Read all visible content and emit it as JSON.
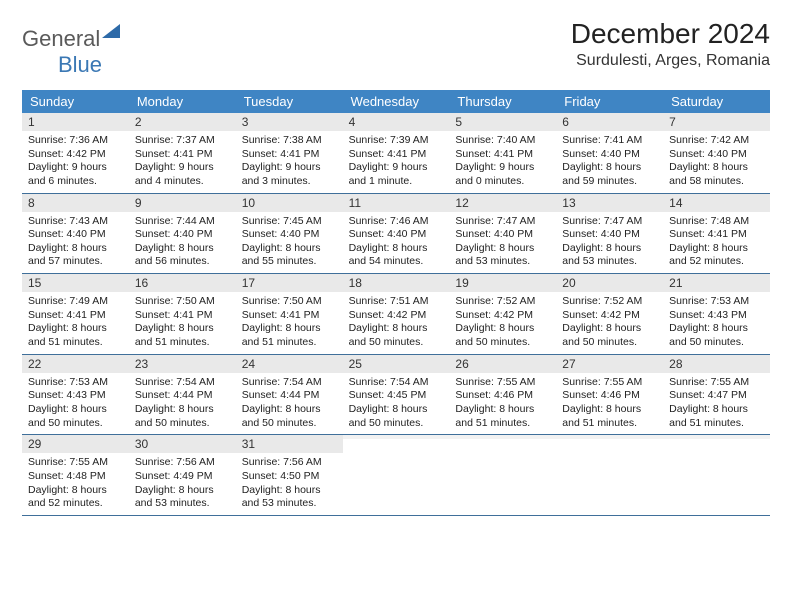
{
  "logo": {
    "general": "General",
    "blue": "Blue"
  },
  "title": "December 2024",
  "location": "Surdulesti, Arges, Romania",
  "colors": {
    "header_bg": "#3f85c4",
    "header_text": "#ffffff",
    "daynum_bg": "#e9e9e9",
    "week_border": "#3f6f9a",
    "logo_gray": "#5a5a5a",
    "logo_blue": "#3b78b4"
  },
  "typography": {
    "title_fontsize": 28,
    "location_fontsize": 16,
    "dayhead_fontsize": 13,
    "daynum_fontsize": 12,
    "daytext_fontsize": 10.5
  },
  "layout": {
    "columns": 7,
    "rows": 5
  },
  "day_headers": [
    "Sunday",
    "Monday",
    "Tuesday",
    "Wednesday",
    "Thursday",
    "Friday",
    "Saturday"
  ],
  "weeks": [
    [
      {
        "n": "1",
        "sr": "Sunrise: 7:36 AM",
        "ss": "Sunset: 4:42 PM",
        "d1": "Daylight: 9 hours",
        "d2": "and 6 minutes."
      },
      {
        "n": "2",
        "sr": "Sunrise: 7:37 AM",
        "ss": "Sunset: 4:41 PM",
        "d1": "Daylight: 9 hours",
        "d2": "and 4 minutes."
      },
      {
        "n": "3",
        "sr": "Sunrise: 7:38 AM",
        "ss": "Sunset: 4:41 PM",
        "d1": "Daylight: 9 hours",
        "d2": "and 3 minutes."
      },
      {
        "n": "4",
        "sr": "Sunrise: 7:39 AM",
        "ss": "Sunset: 4:41 PM",
        "d1": "Daylight: 9 hours",
        "d2": "and 1 minute."
      },
      {
        "n": "5",
        "sr": "Sunrise: 7:40 AM",
        "ss": "Sunset: 4:41 PM",
        "d1": "Daylight: 9 hours",
        "d2": "and 0 minutes."
      },
      {
        "n": "6",
        "sr": "Sunrise: 7:41 AM",
        "ss": "Sunset: 4:40 PM",
        "d1": "Daylight: 8 hours",
        "d2": "and 59 minutes."
      },
      {
        "n": "7",
        "sr": "Sunrise: 7:42 AM",
        "ss": "Sunset: 4:40 PM",
        "d1": "Daylight: 8 hours",
        "d2": "and 58 minutes."
      }
    ],
    [
      {
        "n": "8",
        "sr": "Sunrise: 7:43 AM",
        "ss": "Sunset: 4:40 PM",
        "d1": "Daylight: 8 hours",
        "d2": "and 57 minutes."
      },
      {
        "n": "9",
        "sr": "Sunrise: 7:44 AM",
        "ss": "Sunset: 4:40 PM",
        "d1": "Daylight: 8 hours",
        "d2": "and 56 minutes."
      },
      {
        "n": "10",
        "sr": "Sunrise: 7:45 AM",
        "ss": "Sunset: 4:40 PM",
        "d1": "Daylight: 8 hours",
        "d2": "and 55 minutes."
      },
      {
        "n": "11",
        "sr": "Sunrise: 7:46 AM",
        "ss": "Sunset: 4:40 PM",
        "d1": "Daylight: 8 hours",
        "d2": "and 54 minutes."
      },
      {
        "n": "12",
        "sr": "Sunrise: 7:47 AM",
        "ss": "Sunset: 4:40 PM",
        "d1": "Daylight: 8 hours",
        "d2": "and 53 minutes."
      },
      {
        "n": "13",
        "sr": "Sunrise: 7:47 AM",
        "ss": "Sunset: 4:40 PM",
        "d1": "Daylight: 8 hours",
        "d2": "and 53 minutes."
      },
      {
        "n": "14",
        "sr": "Sunrise: 7:48 AM",
        "ss": "Sunset: 4:41 PM",
        "d1": "Daylight: 8 hours",
        "d2": "and 52 minutes."
      }
    ],
    [
      {
        "n": "15",
        "sr": "Sunrise: 7:49 AM",
        "ss": "Sunset: 4:41 PM",
        "d1": "Daylight: 8 hours",
        "d2": "and 51 minutes."
      },
      {
        "n": "16",
        "sr": "Sunrise: 7:50 AM",
        "ss": "Sunset: 4:41 PM",
        "d1": "Daylight: 8 hours",
        "d2": "and 51 minutes."
      },
      {
        "n": "17",
        "sr": "Sunrise: 7:50 AM",
        "ss": "Sunset: 4:41 PM",
        "d1": "Daylight: 8 hours",
        "d2": "and 51 minutes."
      },
      {
        "n": "18",
        "sr": "Sunrise: 7:51 AM",
        "ss": "Sunset: 4:42 PM",
        "d1": "Daylight: 8 hours",
        "d2": "and 50 minutes."
      },
      {
        "n": "19",
        "sr": "Sunrise: 7:52 AM",
        "ss": "Sunset: 4:42 PM",
        "d1": "Daylight: 8 hours",
        "d2": "and 50 minutes."
      },
      {
        "n": "20",
        "sr": "Sunrise: 7:52 AM",
        "ss": "Sunset: 4:42 PM",
        "d1": "Daylight: 8 hours",
        "d2": "and 50 minutes."
      },
      {
        "n": "21",
        "sr": "Sunrise: 7:53 AM",
        "ss": "Sunset: 4:43 PM",
        "d1": "Daylight: 8 hours",
        "d2": "and 50 minutes."
      }
    ],
    [
      {
        "n": "22",
        "sr": "Sunrise: 7:53 AM",
        "ss": "Sunset: 4:43 PM",
        "d1": "Daylight: 8 hours",
        "d2": "and 50 minutes."
      },
      {
        "n": "23",
        "sr": "Sunrise: 7:54 AM",
        "ss": "Sunset: 4:44 PM",
        "d1": "Daylight: 8 hours",
        "d2": "and 50 minutes."
      },
      {
        "n": "24",
        "sr": "Sunrise: 7:54 AM",
        "ss": "Sunset: 4:44 PM",
        "d1": "Daylight: 8 hours",
        "d2": "and 50 minutes."
      },
      {
        "n": "25",
        "sr": "Sunrise: 7:54 AM",
        "ss": "Sunset: 4:45 PM",
        "d1": "Daylight: 8 hours",
        "d2": "and 50 minutes."
      },
      {
        "n": "26",
        "sr": "Sunrise: 7:55 AM",
        "ss": "Sunset: 4:46 PM",
        "d1": "Daylight: 8 hours",
        "d2": "and 51 minutes."
      },
      {
        "n": "27",
        "sr": "Sunrise: 7:55 AM",
        "ss": "Sunset: 4:46 PM",
        "d1": "Daylight: 8 hours",
        "d2": "and 51 minutes."
      },
      {
        "n": "28",
        "sr": "Sunrise: 7:55 AM",
        "ss": "Sunset: 4:47 PM",
        "d1": "Daylight: 8 hours",
        "d2": "and 51 minutes."
      }
    ],
    [
      {
        "n": "29",
        "sr": "Sunrise: 7:55 AM",
        "ss": "Sunset: 4:48 PM",
        "d1": "Daylight: 8 hours",
        "d2": "and 52 minutes."
      },
      {
        "n": "30",
        "sr": "Sunrise: 7:56 AM",
        "ss": "Sunset: 4:49 PM",
        "d1": "Daylight: 8 hours",
        "d2": "and 53 minutes."
      },
      {
        "n": "31",
        "sr": "Sunrise: 7:56 AM",
        "ss": "Sunset: 4:50 PM",
        "d1": "Daylight: 8 hours",
        "d2": "and 53 minutes."
      },
      {
        "n": "",
        "sr": "",
        "ss": "",
        "d1": "",
        "d2": ""
      },
      {
        "n": "",
        "sr": "",
        "ss": "",
        "d1": "",
        "d2": ""
      },
      {
        "n": "",
        "sr": "",
        "ss": "",
        "d1": "",
        "d2": ""
      },
      {
        "n": "",
        "sr": "",
        "ss": "",
        "d1": "",
        "d2": ""
      }
    ]
  ]
}
